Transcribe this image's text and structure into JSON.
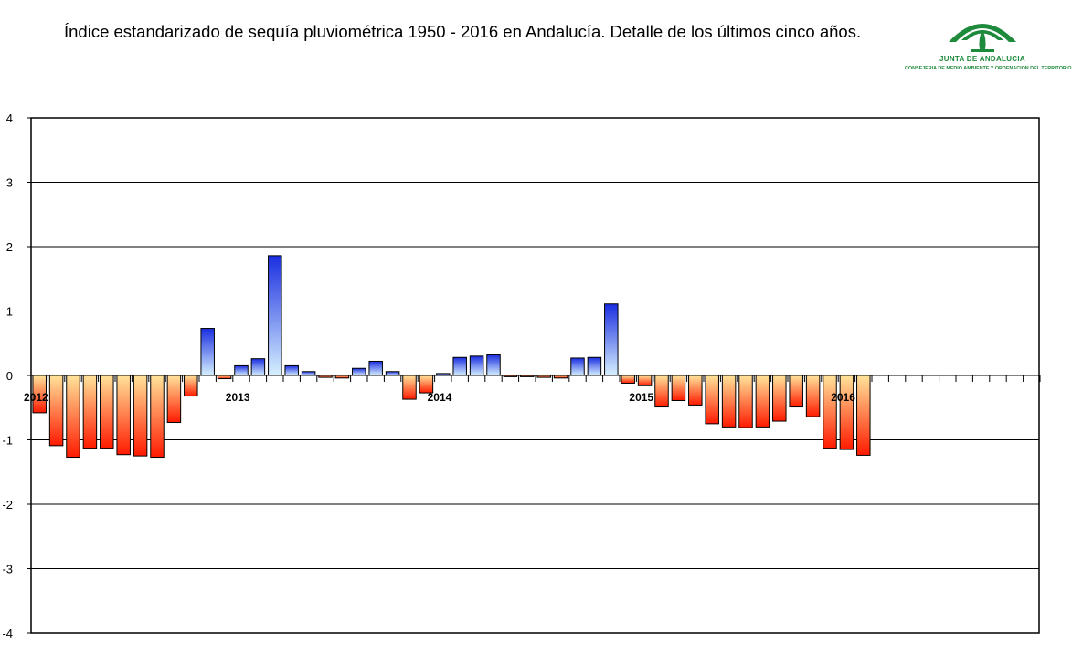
{
  "header": {
    "title": "Índice estandarizado de sequía pluviométrica 1950 - 2016 en Andalucía. Detalle de los últimos cinco años."
  },
  "logo": {
    "line1": "JUNTA DE ANDALUCIA",
    "line2": "CONSEJERIA DE MEDIO AMBIENTE Y ORDENACION DEL TERRITORIO",
    "color": "#1e8a3c"
  },
  "colors": {
    "positive_top": "#1a2ee0",
    "positive_bottom": "#d6f0ff",
    "negative_top": "#ffe39a",
    "negative_bottom": "#ff1a00"
  },
  "chart_data": {
    "type": "bar",
    "title": "",
    "xlabel": "",
    "ylabel": "",
    "ylim": [
      -4,
      4
    ],
    "yticks": [
      4,
      3,
      2,
      1,
      0,
      -1,
      -2,
      -3,
      -4
    ],
    "grid": true,
    "year_labels": [
      {
        "label": "2012",
        "index": 0
      },
      {
        "label": "2013",
        "index": 12
      },
      {
        "label": "2014",
        "index": 24
      },
      {
        "label": "2015",
        "index": 36
      },
      {
        "label": "2016",
        "index": 48
      }
    ],
    "total_slots": 60,
    "values": [
      -0.58,
      -1.09,
      -1.27,
      -1.13,
      -1.13,
      -1.23,
      -1.25,
      -1.27,
      -0.73,
      -0.32,
      0.73,
      -0.05,
      0.15,
      0.26,
      1.86,
      0.15,
      0.06,
      -0.03,
      -0.04,
      0.11,
      0.22,
      0.06,
      -0.37,
      -0.27,
      0.03,
      0.28,
      0.3,
      0.32,
      -0.02,
      -0.02,
      -0.03,
      -0.04,
      0.27,
      0.28,
      1.11,
      -0.12,
      -0.16,
      -0.49,
      -0.39,
      -0.46,
      -0.75,
      -0.8,
      -0.81,
      -0.8,
      -0.71,
      -0.49,
      -0.64,
      -1.13,
      -1.15,
      -1.24
    ]
  }
}
